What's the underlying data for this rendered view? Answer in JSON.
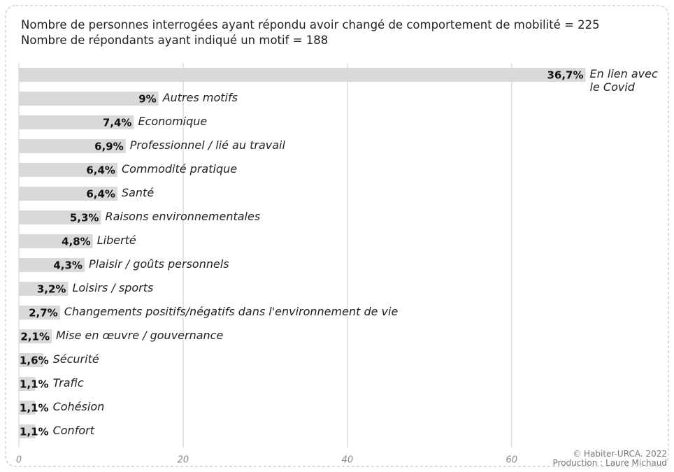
{
  "chart_data": {
    "type": "bar",
    "orientation": "horizontal",
    "title": "Nombre de personnes interrogées ayant répondu avoir changé de comportement de mobilité = 225",
    "subtitle": "Nombre de répondants ayant indiqué un motif = 188",
    "categories": [
      "En lien avec le Covid",
      "Autres motifs",
      "Economique",
      "Professionnel / lié au travail",
      "Commodité pratique",
      "Santé",
      "Raisons environnementales",
      "Liberté",
      "Plaisir / goûts personnels",
      "Loisirs / sports",
      "Changements positifs/négatifs dans l'environnement de vie",
      "Mise en œuvre / gouvernance",
      "Sécurité",
      "Trafic",
      "Cohésion",
      "Confort"
    ],
    "values": [
      69,
      17,
      14,
      13,
      12,
      12,
      10,
      9,
      8,
      6,
      5,
      4,
      3,
      2,
      2,
      2
    ],
    "value_labels": [
      "36,7%",
      "9%",
      "7,4%",
      "6,9%",
      "6,4%",
      "6,4%",
      "5,3%",
      "4,8%",
      "4,3%",
      "3,2%",
      "2,7%",
      "2,1%",
      "1,6%",
      "1,1%",
      "1,1%",
      "1,1%"
    ],
    "color": "#d9d9d9",
    "xlim": [
      0,
      79
    ],
    "xticks": [
      0,
      20,
      40,
      60
    ],
    "grid": true,
    "credits": [
      "© Habiter-URCA. 2022",
      "Production : Laure Michaud"
    ]
  }
}
